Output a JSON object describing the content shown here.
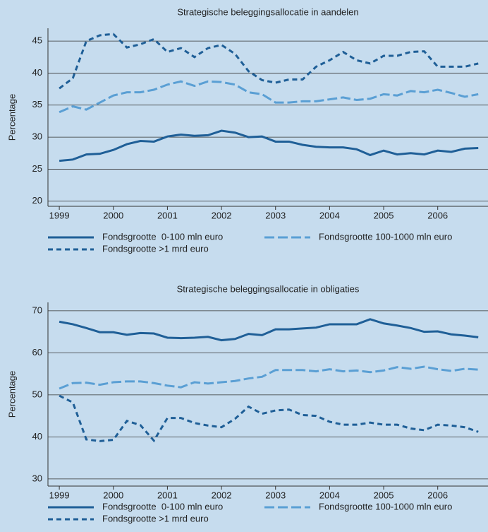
{
  "chart_data": [
    {
      "type": "line",
      "title": "Strategische beleggingsallocatie in aandelen",
      "y_label": "Percentage",
      "x": [
        1999,
        1999.25,
        1999.5,
        1999.75,
        2000,
        2000.25,
        2000.5,
        2000.75,
        2001,
        2001.25,
        2001.5,
        2001.75,
        2002,
        2002.25,
        2002.5,
        2002.75,
        2003,
        2003.25,
        2003.5,
        2003.75,
        2004,
        2004.25,
        2004.5,
        2004.75,
        2005,
        2005.25,
        2005.5,
        2005.75,
        2006,
        2006.25,
        2006.5,
        2006.75
      ],
      "xlim": [
        1998.79,
        2006.93
      ],
      "xticks": [
        1999,
        2000,
        2001,
        2002,
        2003,
        2004,
        2005,
        2006
      ],
      "ylim": [
        19.2,
        47
      ],
      "yticks": [
        20,
        25,
        30,
        35,
        40,
        45
      ],
      "grid": true,
      "series": [
        {
          "name": "Fondsgrootte  0-100 mln euro",
          "color": "#1f5f97",
          "dash": "solid",
          "values": [
            26.3,
            26.5,
            27.3,
            27.4,
            28.0,
            28.9,
            29.4,
            29.3,
            30.1,
            30.4,
            30.2,
            30.3,
            31.0,
            30.7,
            30.0,
            30.1,
            29.3,
            29.3,
            28.8,
            28.5,
            28.4,
            28.4,
            28.1,
            27.2,
            27.9,
            27.3,
            27.5,
            27.3,
            27.9,
            27.7,
            28.2,
            28.3
          ]
        },
        {
          "name": "Fondsgrootte 100-1000 mln euro",
          "color": "#5a9fd4",
          "dash": "long",
          "values": [
            33.9,
            34.8,
            34.3,
            35.4,
            36.5,
            37.0,
            37.0,
            37.4,
            38.2,
            38.7,
            38.0,
            38.7,
            38.6,
            38.2,
            37.0,
            36.7,
            35.4,
            35.4,
            35.6,
            35.6,
            35.9,
            36.2,
            35.8,
            36.0,
            36.7,
            36.5,
            37.2,
            37.0,
            37.4,
            36.9,
            36.3,
            36.7
          ]
        },
        {
          "name": "Fondsgrootte >1 mrd euro",
          "color": "#1f5f97",
          "dash": "short",
          "values": [
            37.6,
            39.2,
            45.0,
            45.9,
            46.1,
            44.0,
            44.5,
            45.3,
            43.3,
            43.9,
            42.5,
            43.9,
            44.4,
            43.0,
            40.3,
            38.9,
            38.5,
            39.0,
            39.0,
            41.0,
            42.0,
            43.3,
            42.0,
            41.5,
            42.7,
            42.7,
            43.3,
            43.4,
            41.0,
            41.0,
            41.0,
            41.5
          ]
        }
      ]
    },
    {
      "type": "line",
      "title": "Strategische beleggingsallocatie in obligaties",
      "y_label": "Percentage",
      "x": [
        1999,
        1999.25,
        1999.5,
        1999.75,
        2000,
        2000.25,
        2000.5,
        2000.75,
        2001,
        2001.25,
        2001.5,
        2001.75,
        2002,
        2002.25,
        2002.5,
        2002.75,
        2003,
        2003.25,
        2003.5,
        2003.75,
        2004,
        2004.25,
        2004.5,
        2004.75,
        2005,
        2005.25,
        2005.5,
        2005.75,
        2006,
        2006.25,
        2006.5,
        2006.75
      ],
      "xlim": [
        1998.79,
        2006.93
      ],
      "xticks": [
        1999,
        2000,
        2001,
        2002,
        2003,
        2004,
        2005,
        2006
      ],
      "ylim": [
        28.3,
        72
      ],
      "yticks": [
        30,
        40,
        50,
        60,
        70
      ],
      "grid": true,
      "series": [
        {
          "name": "Fondsgrootte  0-100 mln euro",
          "color": "#1f5f97",
          "dash": "solid",
          "values": [
            67.4,
            66.8,
            65.9,
            64.9,
            64.9,
            64.3,
            64.7,
            64.6,
            63.6,
            63.5,
            63.6,
            63.8,
            63.0,
            63.3,
            64.5,
            64.2,
            65.6,
            65.6,
            65.8,
            66.0,
            66.8,
            66.8,
            66.8,
            68.0,
            67.0,
            66.5,
            65.9,
            65.0,
            65.1,
            64.4,
            64.1,
            63.7
          ]
        },
        {
          "name": "Fondsgrootte 100-1000 mln euro",
          "color": "#5a9fd4",
          "dash": "long",
          "values": [
            51.5,
            52.8,
            52.9,
            52.4,
            53.0,
            53.2,
            53.2,
            52.8,
            52.2,
            51.8,
            53.0,
            52.7,
            53.0,
            53.3,
            53.9,
            54.3,
            55.9,
            55.9,
            55.9,
            55.6,
            56.1,
            55.6,
            55.8,
            55.4,
            55.8,
            56.6,
            56.2,
            56.7,
            56.1,
            55.7,
            56.2,
            56.0
          ]
        },
        {
          "name": "Fondsgrootte >1 mrd euro",
          "color": "#1f5f97",
          "dash": "short",
          "values": [
            49.8,
            48.2,
            39.4,
            39.0,
            39.3,
            43.8,
            42.8,
            39.1,
            44.5,
            44.5,
            43.3,
            42.7,
            42.3,
            44.3,
            47.2,
            45.5,
            46.3,
            46.5,
            45.2,
            45.0,
            43.6,
            42.9,
            42.9,
            43.4,
            42.9,
            42.9,
            42.0,
            41.6,
            42.9,
            42.7,
            42.3,
            41.2
          ]
        }
      ]
    }
  ]
}
